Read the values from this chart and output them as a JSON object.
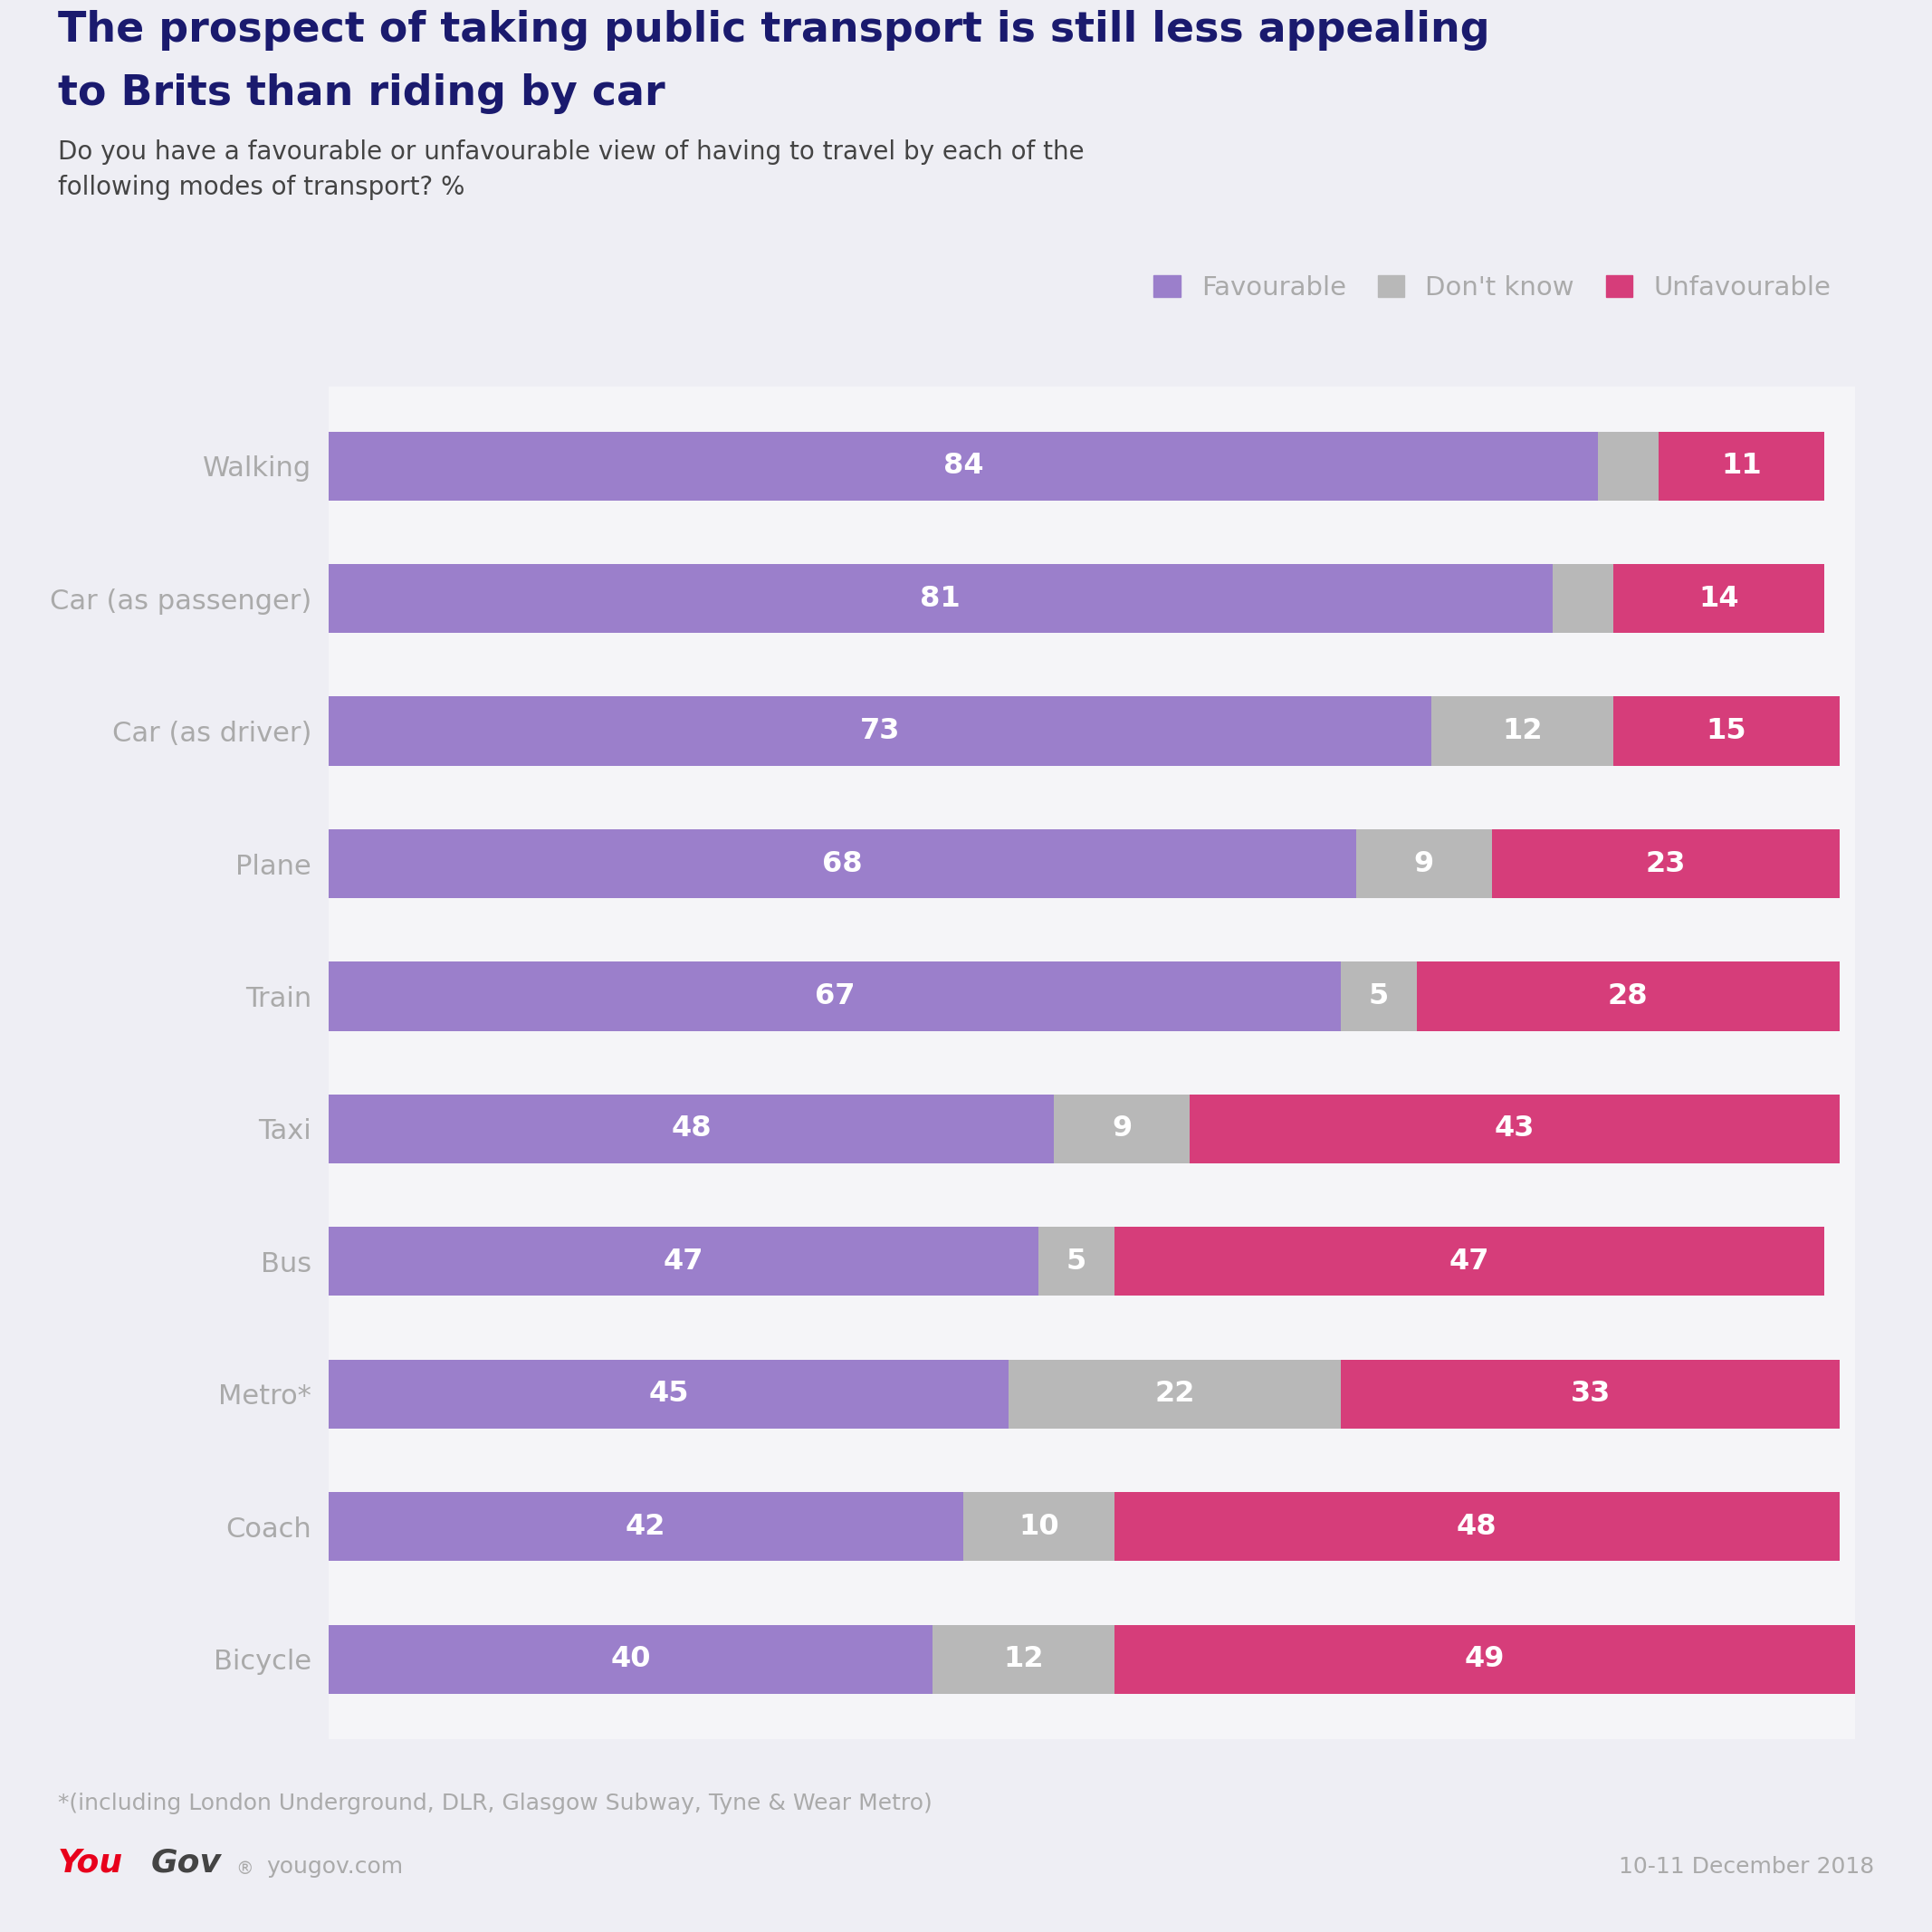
{
  "title_line1": "The prospect of taking public transport is still less appealing",
  "title_line2": "to Brits than riding by car",
  "subtitle": "Do you have a favourable or unfavourable view of having to travel by each of the\nfollowing modes of transport? %",
  "categories": [
    "Walking",
    "Car (as passenger)",
    "Car (as driver)",
    "Plane",
    "Train",
    "Taxi",
    "Bus",
    "Metro*",
    "Coach",
    "Bicycle"
  ],
  "favourable": [
    84,
    81,
    73,
    68,
    67,
    48,
    47,
    45,
    42,
    40
  ],
  "dont_know": [
    4,
    4,
    12,
    9,
    5,
    9,
    5,
    22,
    10,
    12
  ],
  "unfavourable": [
    11,
    14,
    15,
    23,
    28,
    43,
    47,
    33,
    48,
    49
  ],
  "colour_favourable": "#9b7fcb",
  "colour_dont_know": "#b8b8b8",
  "colour_unfavourable": "#d63d7a",
  "background_color": "#eeeef4",
  "chart_bg_color": "#f5f5f8",
  "title_color": "#1a1a6e",
  "subtitle_color": "#444444",
  "label_color": "#aaaaaa",
  "bar_text_color": "#ffffff",
  "footnote": "*(including London Underground, DLR, Glasgow Subway, Tyne & Wear Metro)",
  "date_text": "10-11 December 2018",
  "legend_labels": [
    "Favourable",
    "Don't know",
    "Unfavourable"
  ],
  "yougov_red": "#e8001c",
  "yougov_dark": "#444444"
}
